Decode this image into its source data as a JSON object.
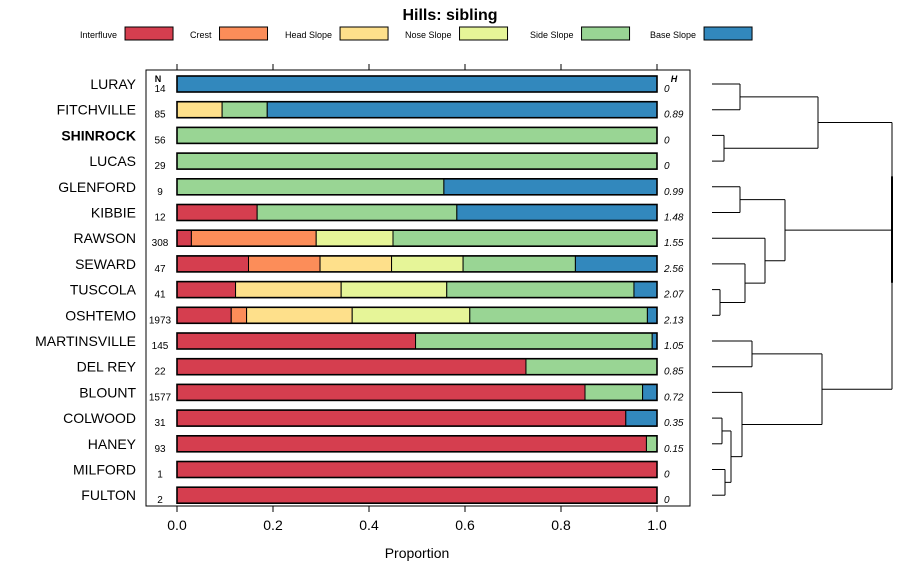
{
  "chart_data": {
    "type": "bar",
    "stacked": true,
    "orientation": "horizontal",
    "title": "Hills: sibling",
    "xlabel": "Proportion",
    "xlim": [
      0,
      1
    ],
    "x_ticks": [
      "0.0",
      "0.2",
      "0.4",
      "0.6",
      "0.8",
      "1.0"
    ],
    "n_header": "N",
    "h_header": "H",
    "legend_position": "top",
    "categories": [
      "Interfluve",
      "Crest",
      "Head Slope",
      "Nose Slope",
      "Side Slope",
      "Base Slope"
    ],
    "colors": {
      "Interfluve": "#d53e4f",
      "Crest": "#fc8d59",
      "Head Slope": "#fee08b",
      "Nose Slope": "#e6f598",
      "Side Slope": "#99d594",
      "Base Slope": "#3288bd"
    },
    "rows": [
      {
        "name": "LURAY",
        "n": "14",
        "h": "0",
        "bold": false,
        "values": [
          0,
          0,
          0,
          0,
          0,
          1.0
        ]
      },
      {
        "name": "FITCHVILLE",
        "n": "85",
        "h": "0.89",
        "bold": false,
        "values": [
          0,
          0,
          0.094,
          0,
          0.094,
          0.812
        ]
      },
      {
        "name": "SHINROCK",
        "n": "56",
        "h": "0",
        "bold": true,
        "values": [
          0,
          0,
          0,
          0,
          1.0,
          0
        ]
      },
      {
        "name": "LUCAS",
        "n": "29",
        "h": "0",
        "bold": false,
        "values": [
          0,
          0,
          0,
          0,
          1.0,
          0
        ]
      },
      {
        "name": "GLENFORD",
        "n": "9",
        "h": "0.99",
        "bold": false,
        "values": [
          0,
          0,
          0,
          0,
          0.556,
          0.444
        ]
      },
      {
        "name": "KIBBIE",
        "n": "12",
        "h": "1.48",
        "bold": false,
        "values": [
          0.167,
          0,
          0,
          0,
          0.416,
          0.417
        ]
      },
      {
        "name": "RAWSON",
        "n": "308",
        "h": "1.55",
        "bold": false,
        "values": [
          0.03,
          0.26,
          0,
          0.16,
          0.55,
          0
        ]
      },
      {
        "name": "SEWARD",
        "n": "47",
        "h": "2.56",
        "bold": false,
        "values": [
          0.149,
          0.149,
          0.149,
          0.149,
          0.234,
          0.17
        ]
      },
      {
        "name": "TUSCOLA",
        "n": "41",
        "h": "2.07",
        "bold": false,
        "values": [
          0.122,
          0,
          0.22,
          0.22,
          0.39,
          0.048
        ]
      },
      {
        "name": "OSHTEMO",
        "n": "1973",
        "h": "2.13",
        "bold": false,
        "values": [
          0.113,
          0.032,
          0.22,
          0.245,
          0.37,
          0.02
        ]
      },
      {
        "name": "MARTINSVILLE",
        "n": "145",
        "h": "1.05",
        "bold": false,
        "values": [
          0.497,
          0,
          0,
          0,
          0.493,
          0.01
        ]
      },
      {
        "name": "DEL REY",
        "n": "22",
        "h": "0.85",
        "bold": false,
        "values": [
          0.727,
          0,
          0,
          0,
          0.273,
          0
        ]
      },
      {
        "name": "BLOUNT",
        "n": "1577",
        "h": "0.72",
        "bold": false,
        "values": [
          0.85,
          0,
          0,
          0,
          0.12,
          0.03
        ]
      },
      {
        "name": "COLWOOD",
        "n": "31",
        "h": "0.35",
        "bold": false,
        "values": [
          0.935,
          0,
          0,
          0,
          0,
          0.065
        ]
      },
      {
        "name": "HANEY",
        "n": "93",
        "h": "0.15",
        "bold": false,
        "values": [
          0.978,
          0,
          0,
          0,
          0.022,
          0
        ]
      },
      {
        "name": "MILFORD",
        "n": "1",
        "h": "0",
        "bold": false,
        "values": [
          1.0,
          0,
          0,
          0,
          0,
          0
        ]
      },
      {
        "name": "FULTON",
        "n": "2",
        "h": "0",
        "bold": false,
        "values": [
          1.0,
          0,
          0,
          0,
          0,
          0
        ]
      }
    ],
    "dendrogram": "hierarchical clustering of the 17 rows: ((((LURAY,FITCHVILLE),(SHINROCK,LUCAS)),((GLENFORD,KIBBIE),(RAWSON,(SEWARD,(TUSCOLA,OSHTEMO))))),((MARTINSVILLE,DEL REY),(BLOUNT,((COLWOOD,HANEY),(MILFORD,FULTON)))))"
  }
}
